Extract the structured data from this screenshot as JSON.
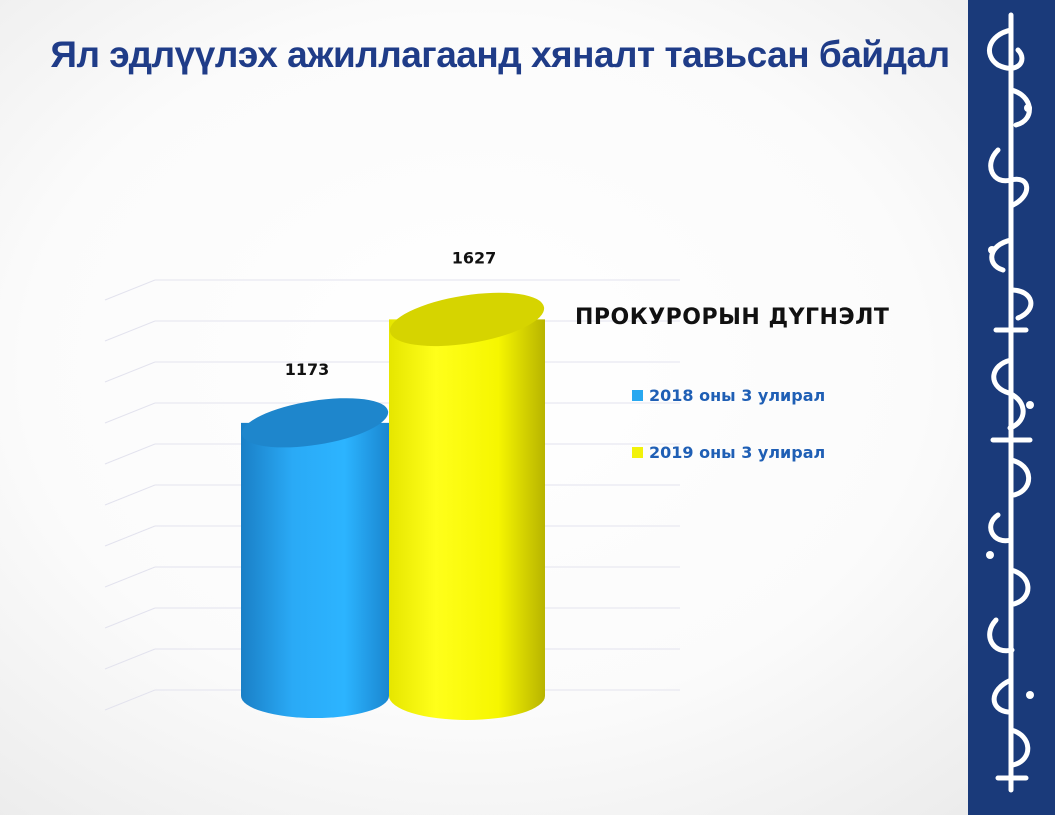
{
  "slide": {
    "title": "Ял эдлүүлэх ажиллагаанд хяналт тавьсан байдал"
  },
  "chart_data": {
    "type": "bar",
    "title": "Ял эдлүүлэх ажиллагаанд хяналт тавьсан байдал",
    "categories": [
      "ПРОКУРОРЫН ДҮГНЭЛТ"
    ],
    "series": [
      {
        "name": "2018 оны 3 улирал",
        "values": [
          1173
        ],
        "color": "#29a8f0"
      },
      {
        "name": "2019 оны 3 улирал",
        "values": [
          1627
        ],
        "color": "#f2f20a"
      }
    ],
    "data_labels": [
      "1173",
      "1627"
    ],
    "ylim": [
      0,
      1800
    ],
    "grid": true,
    "legend_title": "ПРОКУРОРЫН ДҮГНЭЛТ",
    "legend_position": "right",
    "xlabel": "",
    "ylabel": ""
  },
  "decoration": {
    "side_band_color": "#1a3a7a",
    "side_band_content": "vertical-mongolian-script"
  }
}
